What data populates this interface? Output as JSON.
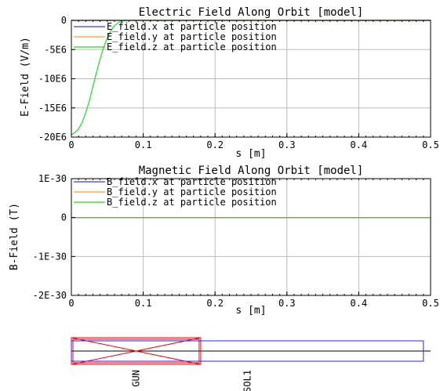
{
  "colors": {
    "x": "#3b3bff",
    "y": "#ff9a2e",
    "z": "#22dd22",
    "axis": "#000000",
    "grid": "#bbbbbb",
    "gun": "#ff0000",
    "sol": "#2222ff"
  },
  "chart_data": [
    {
      "type": "line",
      "title": "Electric Field Along Orbit [model]",
      "xlabel": "s [m]",
      "ylabel": "E-Field (V/m)",
      "xlim": [
        0,
        0.5
      ],
      "ylim": [
        -20000000,
        0
      ],
      "xticks": [
        "0",
        "0.1",
        "0.2",
        "0.3",
        "0.4",
        "0.5"
      ],
      "yticks": [
        "0",
        "-5E6",
        "-10E6",
        "-15E6",
        "-20E6"
      ],
      "grid": true,
      "legend_position": "top-left",
      "series": [
        {
          "name": "E_field.x at particle position",
          "color_key": "x",
          "x": [
            0,
            0.5
          ],
          "y": [
            0,
            0
          ]
        },
        {
          "name": "E_field.y at particle position",
          "color_key": "y",
          "x": [
            0,
            0.5
          ],
          "y": [
            0,
            0
          ]
        },
        {
          "name": "E_field.z at particle position",
          "color_key": "z",
          "x": [
            0,
            0.005,
            0.01,
            0.015,
            0.02,
            0.025,
            0.03,
            0.035,
            0.04,
            0.045,
            0.05,
            0.055,
            0.06,
            0.065,
            0.07,
            0.075,
            0.08,
            0.1,
            0.2,
            0.3,
            0.4,
            0.5
          ],
          "y": [
            -19600000,
            -19200000,
            -18600000,
            -17500000,
            -15800000,
            -13800000,
            -11300000,
            -8900000,
            -6600000,
            -4600000,
            -3000000,
            -1800000,
            -900000,
            -400000,
            -120000,
            -30000,
            0,
            0,
            0,
            0,
            0,
            0
          ]
        }
      ]
    },
    {
      "type": "line",
      "title": "Magnetic Field Along Orbit [model]",
      "xlabel": "s [m]",
      "ylabel": "B-Field (T)",
      "xlim": [
        0,
        0.5
      ],
      "ylim": [
        -2e-30,
        1e-30
      ],
      "xticks": [
        "0",
        "0.1",
        "0.2",
        "0.3",
        "0.4",
        "0.5"
      ],
      "yticks": [
        "1E-30",
        "0",
        "-1E-30",
        "-2E-30"
      ],
      "grid": true,
      "legend_position": "top-left",
      "series": [
        {
          "name": "B_field.x at particle position",
          "color_key": "x",
          "x": [
            0,
            0.5
          ],
          "y": [
            0,
            0
          ]
        },
        {
          "name": "B_field.y at particle position",
          "color_key": "y",
          "x": [
            0,
            0.5
          ],
          "y": [
            0,
            0
          ]
        },
        {
          "name": "B_field.z at particle position",
          "color_key": "z",
          "x": [
            0,
            0.5
          ],
          "y": [
            0,
            0
          ]
        }
      ]
    }
  ],
  "lattice": {
    "xlim": [
      0,
      0.5
    ],
    "elements": [
      {
        "name": "GUN",
        "s_start": 0,
        "s_end": 0.18,
        "color_key": "gun",
        "style": "cross-box"
      },
      {
        "name": "SOL1",
        "s_start": 0,
        "s_end": 0.49,
        "color_key": "sol",
        "style": "box"
      }
    ]
  }
}
